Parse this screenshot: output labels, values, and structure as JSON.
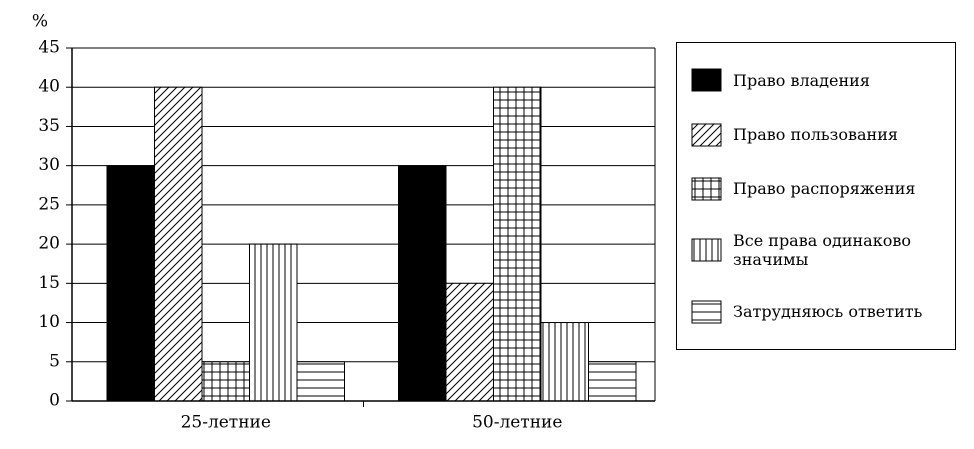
{
  "chart_data": {
    "type": "bar",
    "y_label": "%",
    "categories": [
      "25-летние",
      "50-летние"
    ],
    "series": [
      {
        "name": "Право владения",
        "color": "#000000",
        "pattern": "solid",
        "values": [
          30,
          30
        ]
      },
      {
        "name": "Право пользования",
        "color": "#000000",
        "pattern": "diagonal",
        "values": [
          40,
          15
        ]
      },
      {
        "name": "Право распоряжения",
        "color": "#000000",
        "pattern": "grid",
        "values": [
          5,
          40
        ]
      },
      {
        "name": "Все права одинаково значимы",
        "color": "#000000",
        "pattern": "vertical",
        "values": [
          20,
          10
        ]
      },
      {
        "name": "Затрудняюсь ответить",
        "color": "#000000",
        "pattern": "horizontal",
        "values": [
          5,
          5
        ]
      }
    ],
    "ylim": [
      0,
      45
    ],
    "yticks": [
      0,
      5,
      10,
      15,
      20,
      25,
      30,
      35,
      40,
      45
    ],
    "grid": true,
    "legend": "right"
  }
}
